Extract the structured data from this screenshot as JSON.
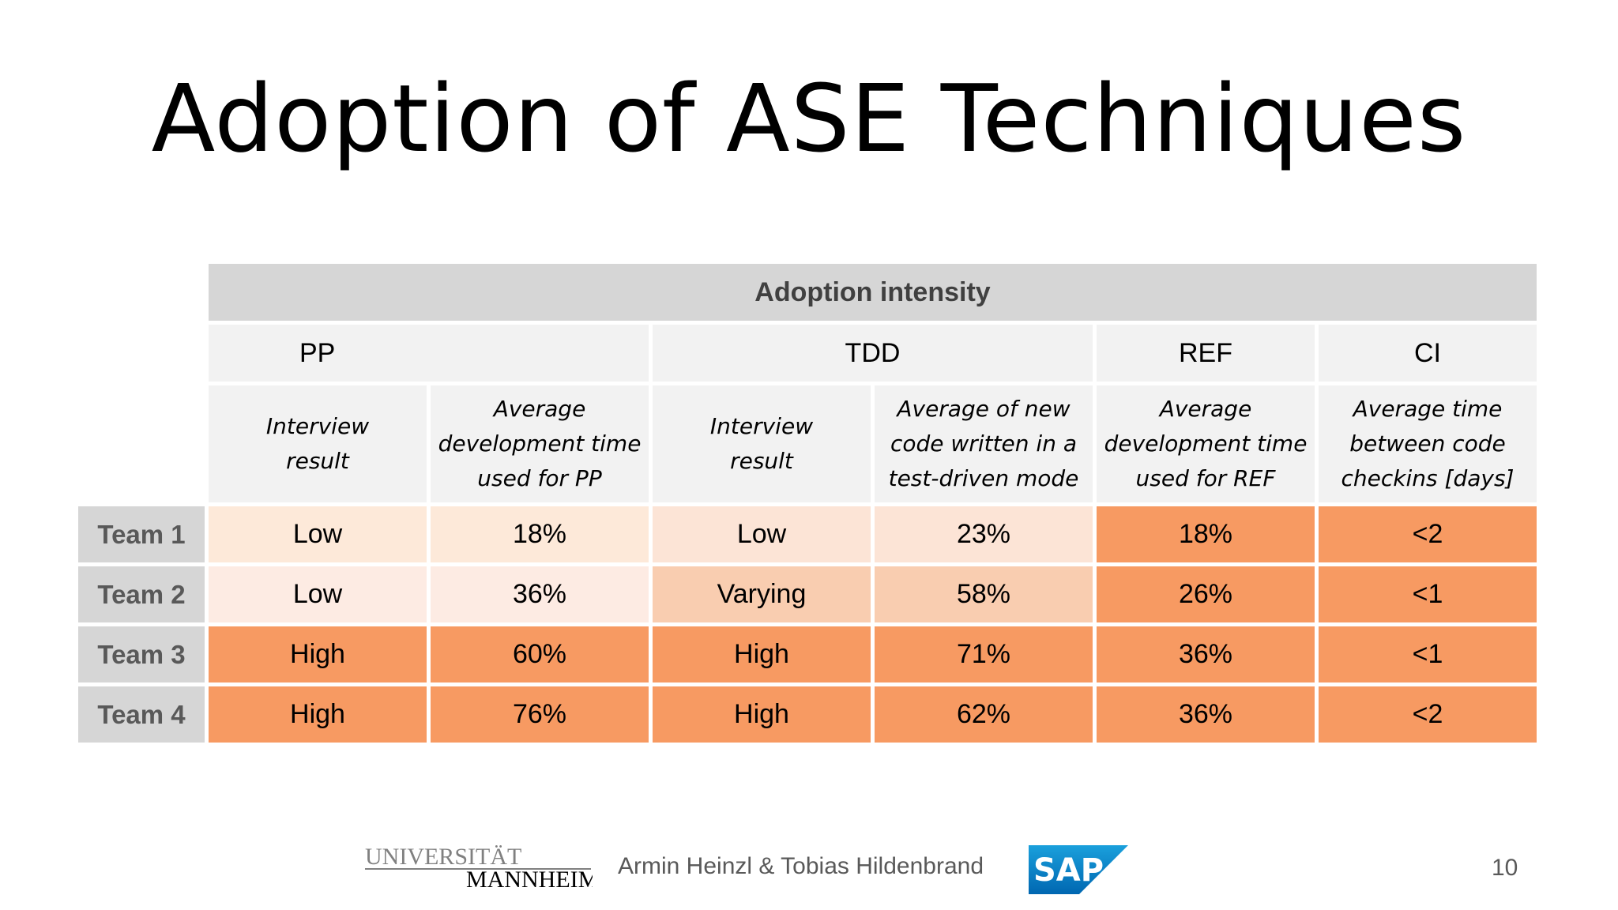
{
  "title": "Adoption of ASE Techniques",
  "table": {
    "header": "Adoption intensity",
    "techniques": [
      "PP",
      "TDD",
      "REF",
      "CI"
    ],
    "subheaders": {
      "pp_interview": "Interview result",
      "pp_avg": "Average development time used for PP",
      "tdd_interview": "Interview result",
      "tdd_avg": "Average of new code written in a test-driven mode",
      "ref_avg": "Average development time used for REF",
      "ci_avg": "Average time between code checkins [days]"
    },
    "rows": [
      {
        "team": "Team 1",
        "pp_interview": "Low",
        "pp_avg": "18%",
        "tdd_interview": "Low",
        "tdd_avg": "23%",
        "ref_avg": "18%",
        "ci_avg": "<2"
      },
      {
        "team": "Team 2",
        "pp_interview": "Low",
        "pp_avg": "36%",
        "tdd_interview": "Varying",
        "tdd_avg": "58%",
        "ref_avg": "26%",
        "ci_avg": "<1"
      },
      {
        "team": "Team 3",
        "pp_interview": "High",
        "pp_avg": "60%",
        "tdd_interview": "High",
        "tdd_avg": "71%",
        "ref_avg": "36%",
        "ci_avg": "<1"
      },
      {
        "team": "Team 4",
        "pp_interview": "High",
        "pp_avg": "76%",
        "tdd_interview": "High",
        "tdd_avg": "62%",
        "ref_avg": "36%",
        "ci_avg": "<2"
      }
    ]
  },
  "colors": {
    "pp_low_team1": "#fde9d9",
    "pp_low_team2": "#fdebe3",
    "tdd_low_team1": "#fce4d6",
    "tdd_varying_team2": "#f9cdb0",
    "high": "#f79a62",
    "header_gray": "#d6d6d6",
    "subheader_gray": "#f2f2f2"
  },
  "footer": {
    "logo_line1": "UNIVERSITÄT",
    "logo_line2": "MANNHEIM",
    "authors": "Armin Heinzl & Tobias Hildenbrand",
    "sap_logo": "SAP",
    "page_number": "10"
  }
}
